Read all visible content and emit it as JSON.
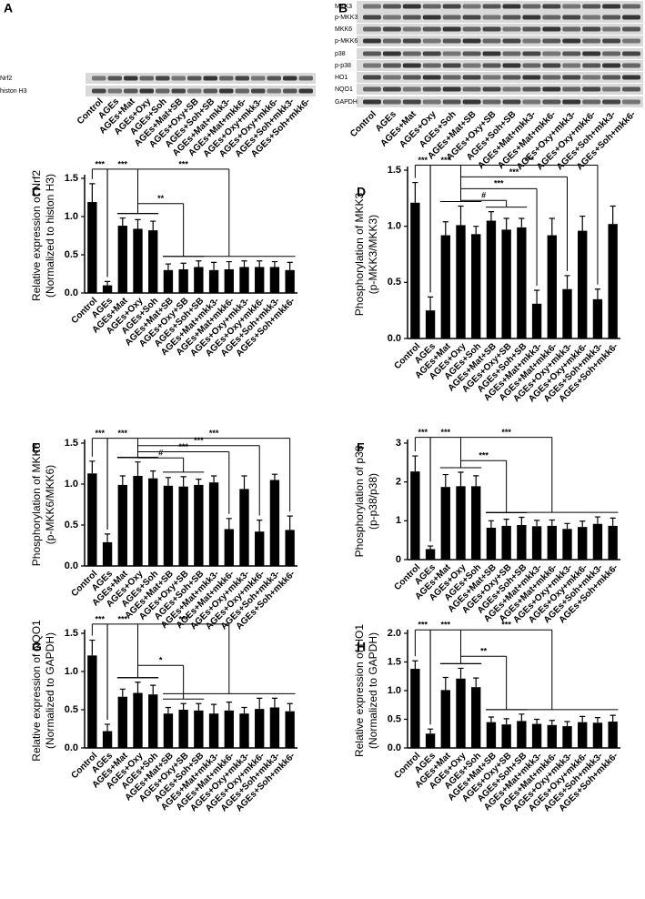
{
  "blots": [
    {
      "panel": "A",
      "rows": [
        "Nrf2",
        "histon H3"
      ],
      "lanes": [
        "Control",
        "AGEs",
        "AGEs+Mat",
        "AGEs+Oxy",
        "AGEs+Soh",
        "AGEs+Mat+SB",
        "AGEs+Oxy+SB",
        "AGEs+Soh+SB",
        "AGEs+Mat+mkk3-",
        "AGEs+Mat+mkk6-",
        "AGEs+Oxy+mkk3-",
        "AGEs+Oxy+mkk6-",
        "AGEs+Soh+mkk3-",
        "AGEs+Soh+mkk6-"
      ]
    },
    {
      "panel": "B",
      "rows": [
        "MKK3",
        "p-MKK3",
        "MKK6",
        "p-MKK6",
        "p38",
        "p-p38",
        "HO1",
        "NQO1",
        "GAPDH"
      ],
      "lanes": [
        "Control",
        "AGEs",
        "AGEs+Mat",
        "AGEs+Oxy",
        "AGEs+Soh",
        "AGEs+Mat+SB",
        "AGEs+Oxy+SB",
        "AGEs+Soh+SB",
        "AGEs+Mat+mkk3-",
        "AGEs+Mat+mkk6-",
        "AGEs+Oxy+mkk3-",
        "AGEs+Oxy+mkk6-",
        "AGEs+Soh+mkk3-",
        "AGEs+Soh+mkk6-"
      ]
    }
  ],
  "chart_data": [
    {
      "type": "bar",
      "panel": "C",
      "ylabel": "Relative expression of Nrf2",
      "ylabel_sub": "(Normalized to histon H3)",
      "categories": [
        "Control",
        "AGEs",
        "AGEs+Mat",
        "AGEs+Oxy",
        "AGEs+Soh",
        "AGEs+Mat+SB",
        "AGEs+Oxy+SB",
        "AGEs+Soh+SB",
        "AGEs+Mat+mkk3-",
        "AGEs+Mat+mkk6-",
        "AGEs+Oxy+mkk3-",
        "AGEs+Oxy+mkk6-",
        "AGEs+Soh+mkk3-",
        "AGEs+Soh+mkk6-"
      ],
      "values": [
        1.19,
        0.1,
        0.88,
        0.84,
        0.82,
        0.3,
        0.31,
        0.34,
        0.3,
        0.31,
        0.34,
        0.34,
        0.34,
        0.3
      ],
      "errors": [
        0.24,
        0.05,
        0.1,
        0.12,
        0.12,
        0.08,
        0.08,
        0.08,
        0.1,
        0.1,
        0.08,
        0.08,
        0.07,
        0.1
      ],
      "color": "#000000",
      "ylim": [
        0,
        1.5
      ],
      "yticks": [
        {
          "value": 0,
          "label": "0.0"
        },
        {
          "value": 0.5,
          "label": "0.5"
        },
        {
          "value": 1,
          "label": "1.0"
        },
        {
          "value": 1.5,
          "label": "1.5"
        }
      ],
      "annotations": [
        "***",
        "***",
        "***",
        "**"
      ]
    },
    {
      "type": "bar",
      "panel": "D",
      "ylabel": "Phosphorylation of MKK3",
      "ylabel_sub": "(p-MKK3/MKK3)",
      "categories": [
        "Control",
        "AGEs",
        "AGEs+Mat",
        "AGEs+Oxy",
        "AGEs+Soh",
        "AGEs+Mat+SB",
        "AGEs+Oxy+SB",
        "AGEs+Soh+SB",
        "AGEs+Mat+mkk3-",
        "AGEs+Mat+mkk6-",
        "AGEs+Oxy+mkk3-",
        "AGEs+Oxy+mkk6-",
        "AGEs+Soh+mkk3-",
        "AGEs+Soh+mkk6-"
      ],
      "values": [
        1.21,
        0.25,
        0.92,
        1.01,
        0.93,
        1.05,
        0.97,
        0.99,
        0.31,
        0.92,
        0.44,
        0.96,
        0.35,
        1.02
      ],
      "errors": [
        0.18,
        0.12,
        0.12,
        0.17,
        0.07,
        0.08,
        0.1,
        0.08,
        0.12,
        0.15,
        0.12,
        0.13,
        0.09,
        0.16
      ],
      "color": "#000000",
      "ylim": [
        0,
        1.5
      ],
      "yticks": [
        {
          "value": 0,
          "label": "0.0"
        },
        {
          "value": 0.5,
          "label": "0.5"
        },
        {
          "value": 1,
          "label": "1.0"
        },
        {
          "value": 1.5,
          "label": "1.5"
        }
      ],
      "annotations": [
        "***",
        "***",
        "***",
        "***",
        "***",
        "#"
      ]
    },
    {
      "type": "bar",
      "panel": "E",
      "ylabel": "Phosphorylation of MKK6",
      "ylabel_sub": "(p-MKK6/MKK6)",
      "categories": [
        "Control",
        "AGEs",
        "AGEs+Mat",
        "AGEs+Oxy",
        "AGEs+Soh",
        "AGEs+Mat+SB",
        "AGEs+Oxy+SB",
        "AGEs+Soh+SB",
        "AGEs+Mat+mkk3-",
        "AGEs+Mat+mkk6-",
        "AGEs+Oxy+mkk3-",
        "AGEs+Oxy+mkk6-",
        "AGEs+Soh+mkk3-",
        "AGEs+Soh+mkk6-"
      ],
      "values": [
        1.13,
        0.29,
        0.99,
        1.1,
        1.07,
        0.98,
        0.97,
        0.99,
        1.02,
        0.45,
        0.94,
        0.42,
        1.05,
        0.44
      ],
      "errors": [
        0.15,
        0.1,
        0.11,
        0.17,
        0.09,
        0.1,
        0.12,
        0.07,
        0.08,
        0.13,
        0.16,
        0.14,
        0.07,
        0.17
      ],
      "color": "#000000",
      "ylim": [
        0,
        1.5
      ],
      "yticks": [
        {
          "value": 0,
          "label": "0.0"
        },
        {
          "value": 0.5,
          "label": "0.5"
        },
        {
          "value": 1,
          "label": "1.0"
        },
        {
          "value": 1.5,
          "label": "1.5"
        }
      ],
      "annotations": [
        "***",
        "***",
        "***",
        "***",
        "***",
        "#"
      ]
    },
    {
      "type": "bar",
      "panel": "F",
      "ylabel": "Phosphorylation of p38",
      "ylabel_sub": "(p-p38/p38)",
      "categories": [
        "Control",
        "AGEs",
        "AGEs+Mat",
        "AGEs+Oxy",
        "AGEs+Soh",
        "AGEs+Mat+SB",
        "AGEs+Oxy+SB",
        "AGEs+Soh+SB",
        "AGEs+Mat+mkk3-",
        "AGEs+Mat+mkk6-",
        "AGEs+Oxy+mkk3-",
        "AGEs+Oxy+mkk6-",
        "AGEs+Soh+mkk3-",
        "AGEs+Soh+mkk6-"
      ],
      "values": [
        2.27,
        0.27,
        1.87,
        1.89,
        1.89,
        0.82,
        0.87,
        0.89,
        0.86,
        0.87,
        0.79,
        0.84,
        0.92,
        0.87
      ],
      "errors": [
        0.4,
        0.08,
        0.32,
        0.36,
        0.27,
        0.18,
        0.17,
        0.2,
        0.15,
        0.15,
        0.14,
        0.15,
        0.18,
        0.2
      ],
      "color": "#000000",
      "ylim": [
        0,
        3
      ],
      "yticks": [
        0,
        1,
        2,
        3
      ],
      "annotations": [
        "***",
        "***",
        "***",
        "***"
      ]
    },
    {
      "type": "bar",
      "panel": "G",
      "ylabel": "Relative expression of NQO1",
      "ylabel_sub": "(Normalized to GAPDH)",
      "categories": [
        "Control",
        "AGEs",
        "AGEs+Mat",
        "AGEs+Oxy",
        "AGEs+Soh",
        "AGEs+Mat+SB",
        "AGEs+Oxy+SB",
        "AGEs+Soh+SB",
        "AGEs+Mat+mkk3-",
        "AGEs+Mat+mkk6-",
        "AGEs+Oxy+mkk3-",
        "AGEs+Oxy+mkk6-",
        "AGEs+Soh+mkk3-",
        "AGEs+Soh+mkk6-"
      ],
      "values": [
        1.21,
        0.22,
        0.67,
        0.72,
        0.7,
        0.45,
        0.5,
        0.49,
        0.45,
        0.49,
        0.45,
        0.51,
        0.53,
        0.48
      ],
      "errors": [
        0.2,
        0.09,
        0.1,
        0.14,
        0.12,
        0.08,
        0.08,
        0.09,
        0.12,
        0.11,
        0.08,
        0.14,
        0.12,
        0.1
      ],
      "color": "#000000",
      "ylim": [
        0,
        1.5
      ],
      "yticks": [
        {
          "value": 0,
          "label": "0.0"
        },
        {
          "value": 0.5,
          "label": "0.5"
        },
        {
          "value": 1,
          "label": "1.0"
        },
        {
          "value": 1.5,
          "label": "1.5"
        }
      ],
      "annotations": [
        "***",
        "***",
        "***",
        "*"
      ]
    },
    {
      "type": "bar",
      "panel": "H",
      "ylabel": "Relative expression of HO1",
      "ylabel_sub": "(Normalized to GAPDH)",
      "categories": [
        "Control",
        "AGEs",
        "AGEs+Mat",
        "AGEs+Oxy",
        "AGEs+Soh",
        "AGEs+Mat+SB",
        "AGEs+Oxy+SB",
        "AGEs+Soh+SB",
        "AGEs+Mat+mkk3-",
        "AGEs+Mat+mkk6-",
        "AGEs+Oxy+mkk3-",
        "AGEs+Oxy+mkk6-",
        "AGEs+Soh+mkk3-",
        "AGEs+Soh+mkk6-"
      ],
      "values": [
        1.38,
        0.25,
        1.01,
        1.21,
        1.06,
        0.45,
        0.41,
        0.47,
        0.42,
        0.4,
        0.38,
        0.45,
        0.44,
        0.46
      ],
      "errors": [
        0.14,
        0.08,
        0.22,
        0.18,
        0.16,
        0.09,
        0.1,
        0.12,
        0.08,
        0.08,
        0.08,
        0.1,
        0.09,
        0.11
      ],
      "color": "#000000",
      "ylim": [
        0,
        2
      ],
      "yticks": [
        {
          "value": 0,
          "label": "0.0"
        },
        {
          "value": 0.5,
          "label": "0.5"
        },
        {
          "value": 1,
          "label": "1.0"
        },
        {
          "value": 1.5,
          "label": "1.5"
        },
        {
          "value": 2,
          "label": "2.0"
        }
      ],
      "annotations": [
        "***",
        "***",
        "***",
        "**"
      ]
    }
  ]
}
